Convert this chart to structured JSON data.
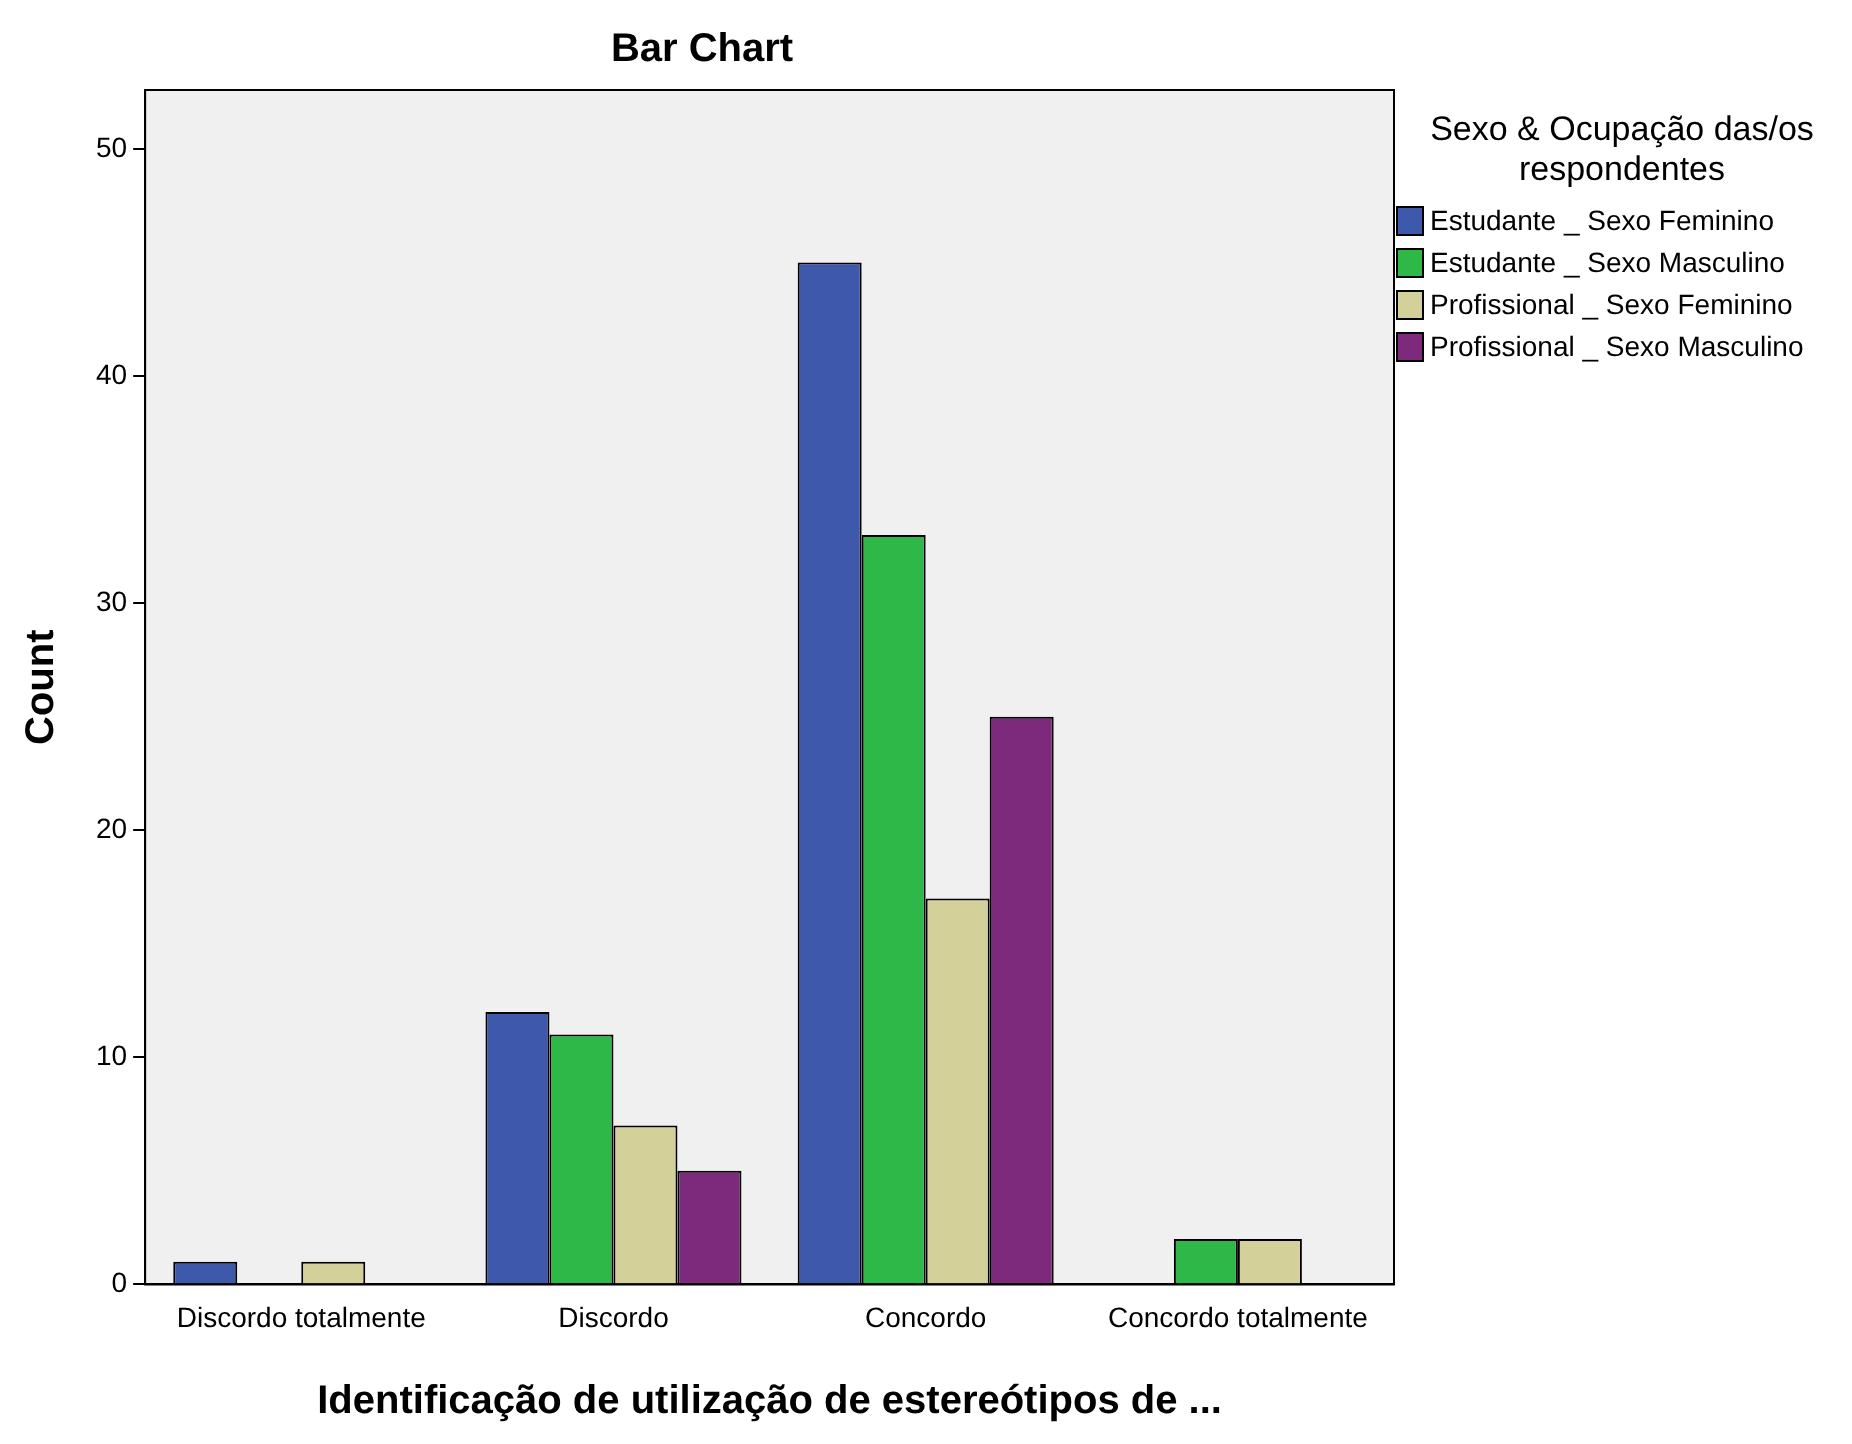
{
  "chart_data": {
    "type": "bar",
    "title": "Bar Chart",
    "xlabel": "Identificação de utilização de estereótipos de ...",
    "ylabel": "Count",
    "legend_title": "Sexo & Ocupação das/os respondentes",
    "categories": [
      "Discordo totalmente",
      "Discordo",
      "Concordo",
      "Concordo totalmente"
    ],
    "series": [
      {
        "name": "Estudante _ Sexo Feminino",
        "color": "#3e58ac",
        "values": [
          1,
          12,
          45,
          null
        ]
      },
      {
        "name": "Estudante _ Sexo Masculino",
        "color": "#2eb848",
        "values": [
          null,
          11,
          33,
          2
        ]
      },
      {
        "name": "Profissional _ Sexo Feminino",
        "color": "#d4d09a",
        "values": [
          1,
          7,
          17,
          2
        ]
      },
      {
        "name": "Profissional _ Sexo Masculino",
        "color": "#7d2a7d",
        "values": [
          null,
          5,
          25,
          null
        ]
      }
    ],
    "ylim": [
      0,
      52.6
    ],
    "yticks": [
      0,
      10,
      20,
      30,
      40,
      50
    ],
    "grid": false,
    "legend": "right"
  }
}
